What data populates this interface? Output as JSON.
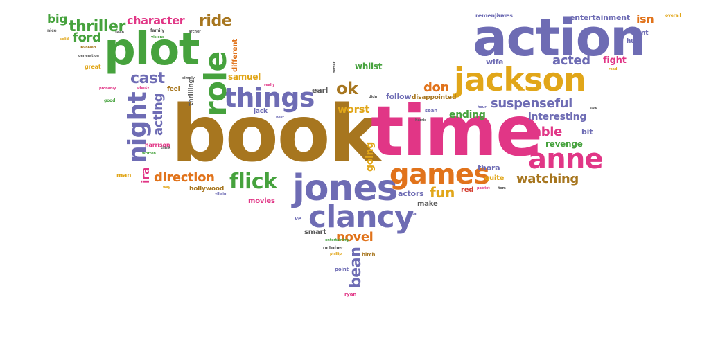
{
  "palette": {
    "brown": "#a7761f",
    "pink": "#e13686",
    "purple": "#6e6cb4",
    "green": "#46a23d",
    "orange": "#e1731b",
    "yellow": "#e1a619",
    "gray": "#5c5c5c",
    "red": "#d54133"
  },
  "words": [
    "book",
    "time",
    "action",
    "jackson",
    "plot",
    "jones",
    "clancy",
    "games",
    "anne",
    "things",
    "night",
    "role",
    "flick",
    "cast",
    "thriller",
    "direction",
    "watching",
    "character",
    "acting",
    "ride",
    "ok",
    "acted",
    "suspenseful",
    "fun",
    "novel",
    "bean",
    "worst",
    "ford",
    "big",
    "don",
    "able",
    "going",
    "isn",
    "fight",
    "tight",
    "ira",
    "interesting",
    "revenge",
    "ending",
    "samuel",
    "whilst",
    "earl",
    "follow",
    "disappointed",
    "wife",
    "entertainment",
    "thora",
    "quite",
    "actors",
    "red",
    "make",
    "smart",
    "different",
    "thrilling",
    "hollywood",
    "movies",
    "man",
    "harrison",
    "remember",
    "james",
    "want",
    "hunt",
    "great",
    "feel",
    "bit",
    "jack",
    "sean",
    "october",
    "birch",
    "point",
    "ryan",
    "ve",
    "good",
    "nice",
    "solid",
    "involved",
    "generation",
    "probably",
    "plenty",
    "simply",
    "really",
    "better",
    "didn",
    "best",
    "written",
    "think",
    "way",
    "villain",
    "seen",
    "family",
    "visions",
    "archer",
    "entertaining",
    "phillip",
    "patriot",
    "tom",
    "star",
    "harris",
    "hour",
    "saw",
    "read",
    "overall"
  ]
}
